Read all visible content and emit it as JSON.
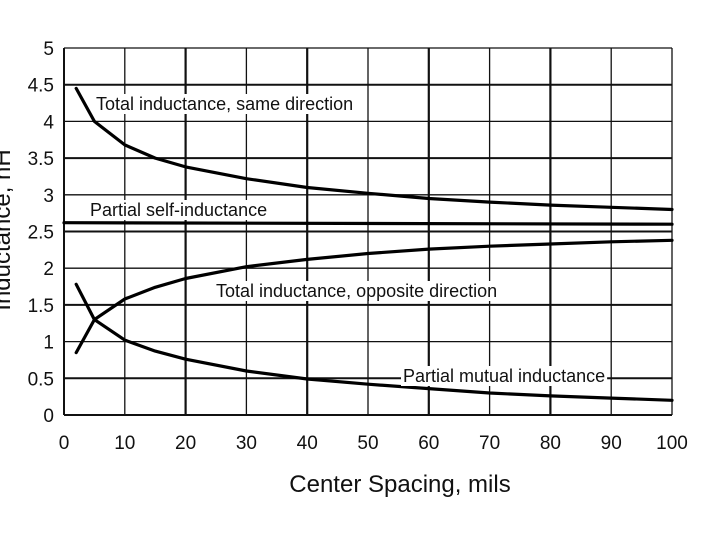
{
  "chart_data": {
    "type": "line",
    "title": "",
    "xlabel": "Center Spacing, mils",
    "ylabel": "Inductance, nH",
    "xlim": [
      0,
      100
    ],
    "ylim": [
      0,
      5
    ],
    "x_ticks": [
      "0",
      "10",
      "20",
      "30",
      "40",
      "50",
      "60",
      "70",
      "80",
      "90",
      "100"
    ],
    "y_ticks": [
      "0",
      "0.5",
      "1",
      "1.5",
      "2",
      "2.5",
      "3",
      "3.5",
      "4",
      "4.5",
      "5"
    ],
    "grid": true,
    "series": [
      {
        "name": "Total inductance, same direction",
        "x": [
          2,
          5,
          10,
          15,
          20,
          30,
          40,
          50,
          60,
          70,
          80,
          90,
          100
        ],
        "y": [
          4.45,
          4.0,
          3.68,
          3.5,
          3.38,
          3.22,
          3.1,
          3.02,
          2.95,
          2.9,
          2.86,
          2.83,
          2.8
        ]
      },
      {
        "name": "Partial self-inductance",
        "x": [
          0,
          100
        ],
        "y": [
          2.62,
          2.6
        ]
      },
      {
        "name": "Total inductance, opposite direction",
        "x": [
          2,
          5,
          10,
          15,
          20,
          30,
          40,
          50,
          60,
          70,
          80,
          90,
          100
        ],
        "y": [
          0.85,
          1.3,
          1.58,
          1.74,
          1.86,
          2.02,
          2.12,
          2.2,
          2.26,
          2.3,
          2.33,
          2.36,
          2.38
        ]
      },
      {
        "name": "Partial mutual inductance",
        "x": [
          2,
          5,
          10,
          15,
          20,
          30,
          40,
          50,
          60,
          70,
          80,
          90,
          100
        ],
        "y": [
          1.78,
          1.3,
          1.02,
          0.87,
          0.76,
          0.6,
          0.49,
          0.42,
          0.36,
          0.3,
          0.26,
          0.23,
          0.2
        ]
      }
    ]
  }
}
